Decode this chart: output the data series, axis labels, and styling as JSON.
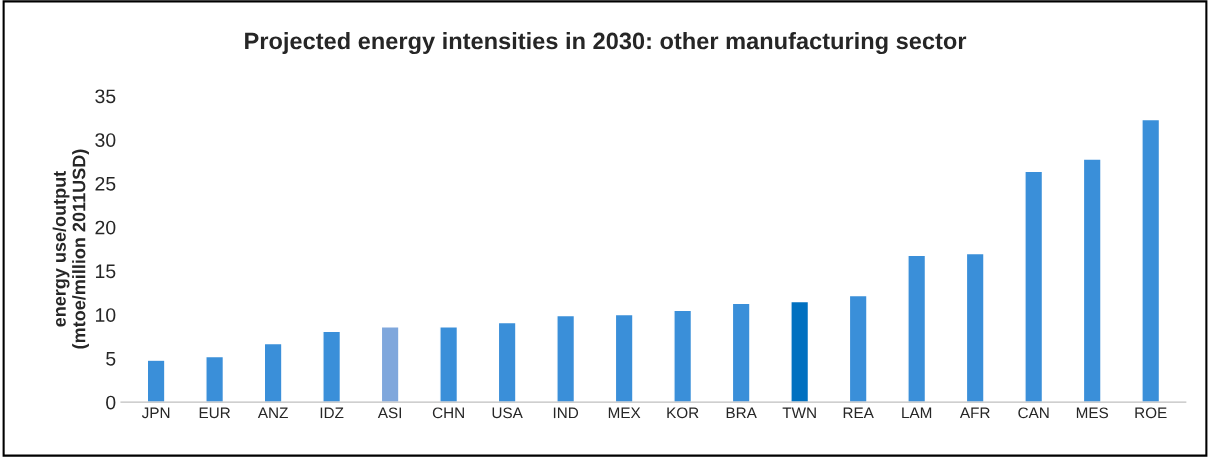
{
  "chart_data": {
    "type": "bar",
    "title": "Projected energy intensities in 2030: other manufacturing sector",
    "ylabel": "energy use/output\n(mtoe/million 2011USD)",
    "categories": [
      "JPN",
      "EUR",
      "ANZ",
      "IDZ",
      "ASI",
      "CHN",
      "USA",
      "IND",
      "MEX",
      "KOR",
      "BRA",
      "TWN",
      "REA",
      "LAM",
      "AFR",
      "CAN",
      "MES",
      "ROE"
    ],
    "values": [
      4.8,
      5.2,
      6.7,
      8.1,
      8.6,
      8.6,
      9.1,
      9.9,
      10.0,
      10.5,
      11.3,
      11.5,
      12.2,
      16.8,
      17.0,
      26.4,
      27.8,
      32.3
    ],
    "colors": [
      "#3a8fd9",
      "#3a8fd9",
      "#3a8fd9",
      "#3a8fd9",
      "#7fa7dc",
      "#3a8fd9",
      "#3a8fd9",
      "#3a8fd9",
      "#3a8fd9",
      "#3a8fd9",
      "#3a8fd9",
      "#0070c0",
      "#3a8fd9",
      "#3a8fd9",
      "#3a8fd9",
      "#3a8fd9",
      "#3a8fd9",
      "#3a8fd9"
    ],
    "ylim": [
      0,
      35
    ],
    "yticks": [
      0,
      5,
      10,
      15,
      20,
      25,
      30,
      35
    ],
    "grid": false,
    "legend": false
  }
}
